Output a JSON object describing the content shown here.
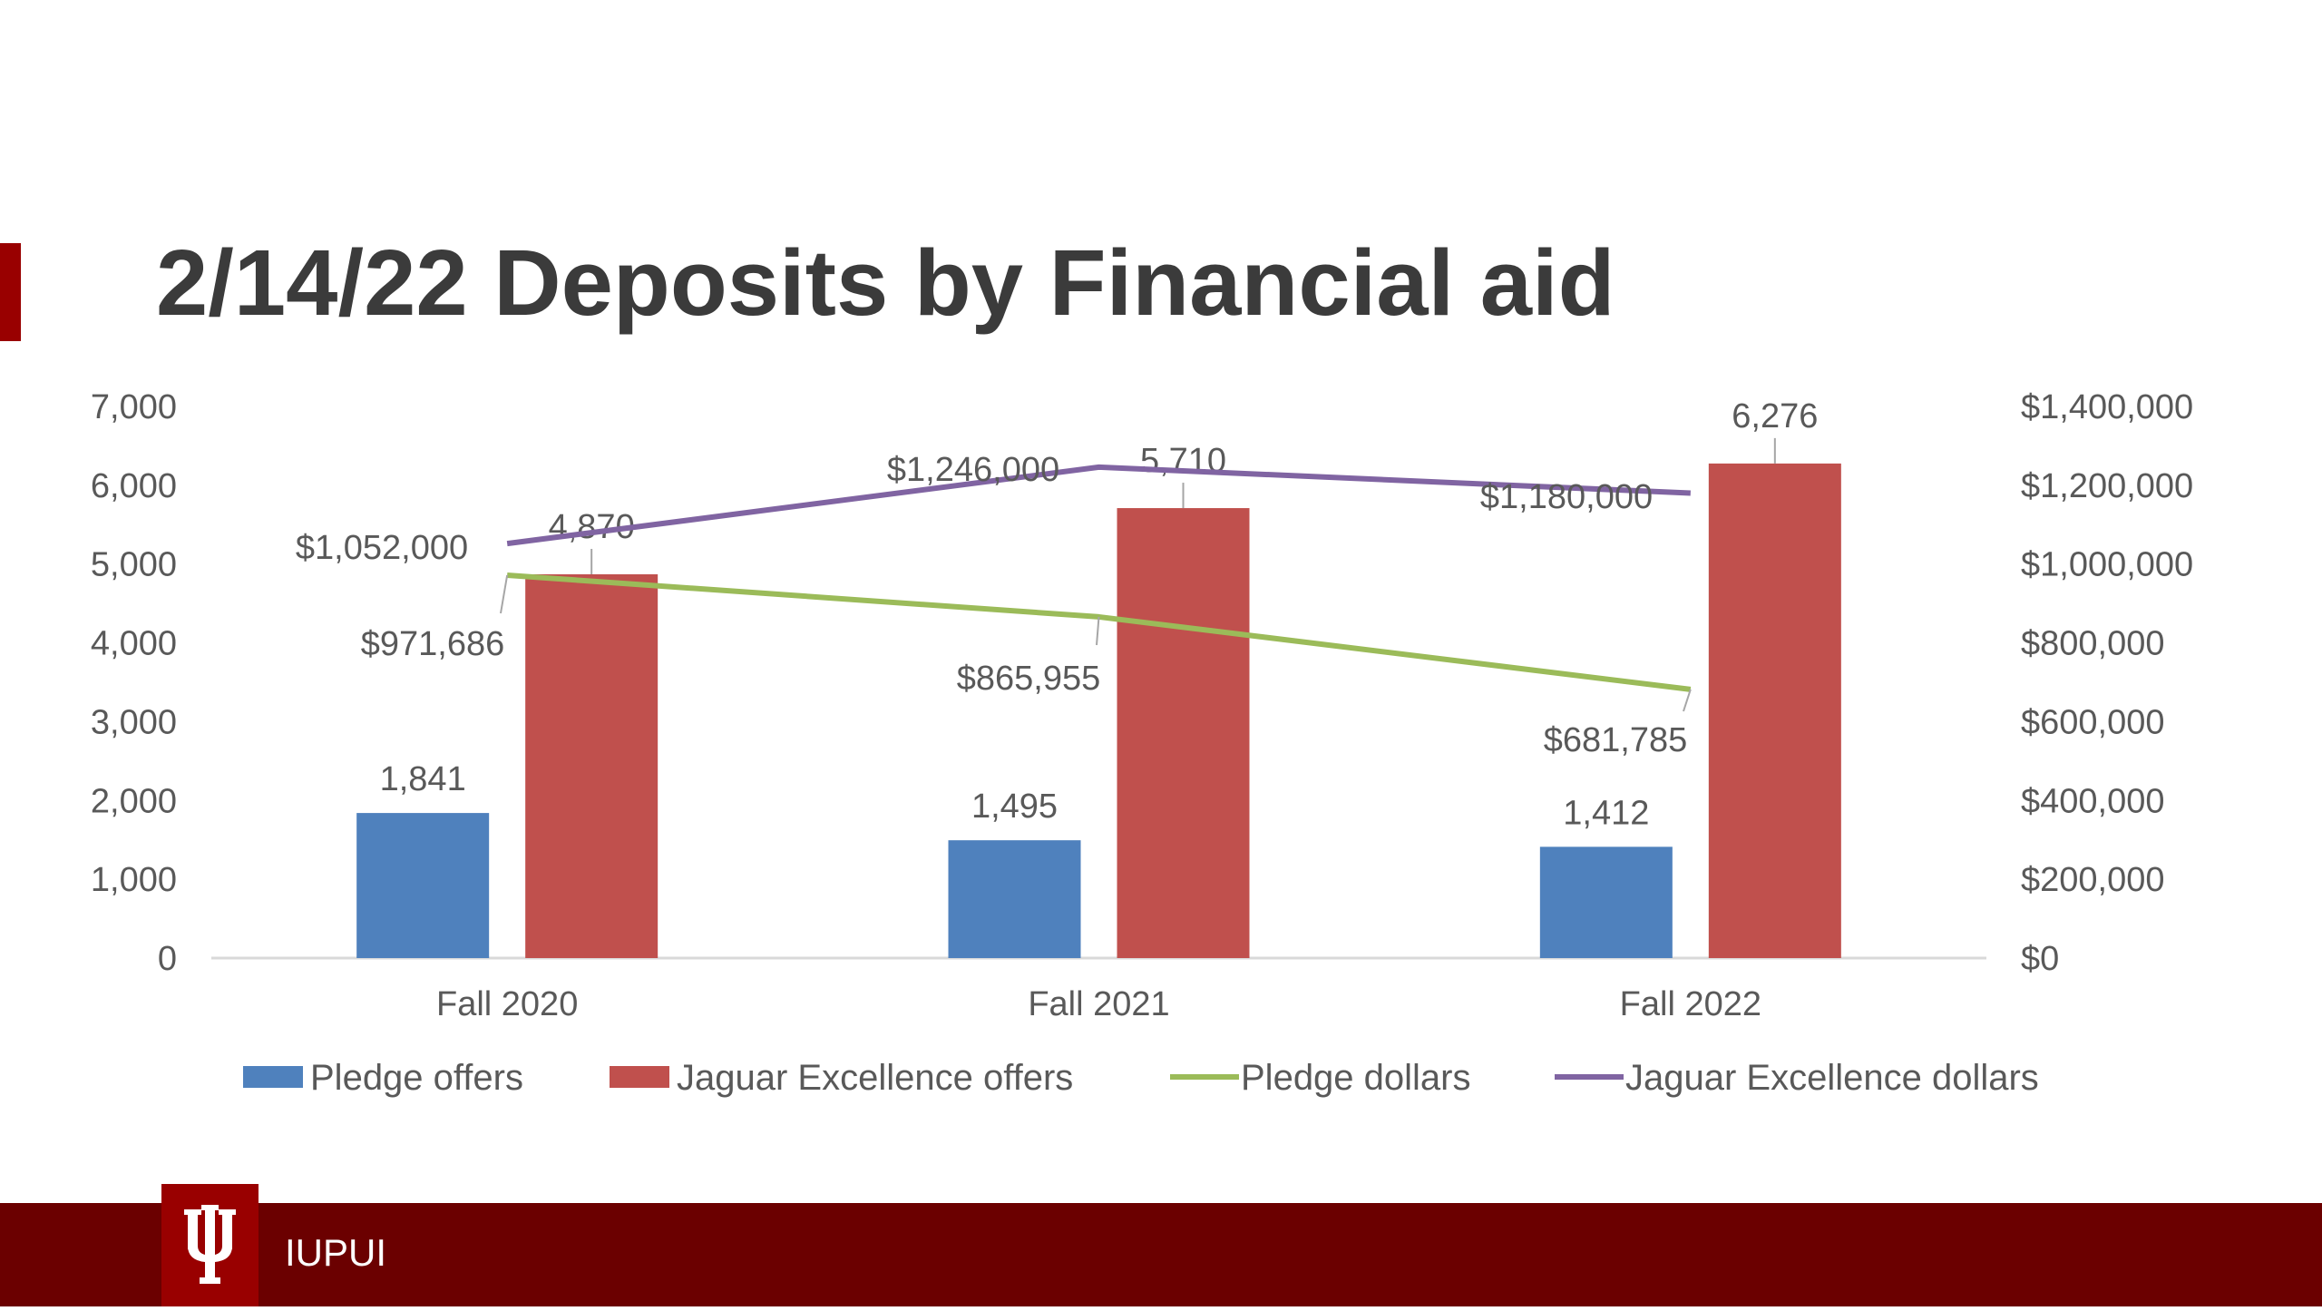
{
  "slide": {
    "title": "2/14/22 Deposits by Financial aid",
    "footer_text": "IUPUI",
    "logo": "iu-trident-logo",
    "colors": {
      "accent": "#990000",
      "footer": "#6b0000",
      "title": "#3b3b3b"
    }
  },
  "chart_data": {
    "type": "bar",
    "categories": [
      "Fall 2020",
      "Fall 2021",
      "Fall 2022"
    ],
    "series": [
      {
        "name": "Pledge offers",
        "type": "bar",
        "axis": "left",
        "color": "#4f81bd",
        "values": [
          1841,
          1495,
          1412
        ],
        "labels": [
          "1,841",
          "1,495",
          "1,412"
        ]
      },
      {
        "name": "Jaguar Excellence offers",
        "type": "bar",
        "axis": "left",
        "color": "#c0504d",
        "values": [
          4870,
          5710,
          6276
        ],
        "labels": [
          "4,870",
          "5,710",
          "6,276"
        ]
      },
      {
        "name": "Pledge dollars",
        "type": "line",
        "axis": "right",
        "color": "#9bbb59",
        "values": [
          971686,
          865955,
          681785
        ],
        "labels": [
          "$971,686",
          "$865,955",
          "$681,785"
        ]
      },
      {
        "name": "Jaguar Excellence dollars",
        "type": "line",
        "axis": "right",
        "color": "#8064a2",
        "values": [
          1052000,
          1246000,
          1180000
        ],
        "labels": [
          "$1,052,000",
          "$1,246,000",
          "$1,180,000"
        ]
      }
    ],
    "y_left": {
      "min": 0,
      "max": 7000,
      "step": 1000,
      "tick_labels": [
        "0",
        "1,000",
        "2,000",
        "3,000",
        "4,000",
        "5,000",
        "6,000",
        "7,000"
      ]
    },
    "y_right": {
      "min": 0,
      "max": 1400000,
      "step": 200000,
      "tick_labels": [
        "$0",
        "$200,000",
        "$400,000",
        "$600,000",
        "$800,000",
        "$1,000,000",
        "$1,200,000",
        "$1,400,000"
      ]
    },
    "grid": false,
    "legend": "bottom"
  }
}
